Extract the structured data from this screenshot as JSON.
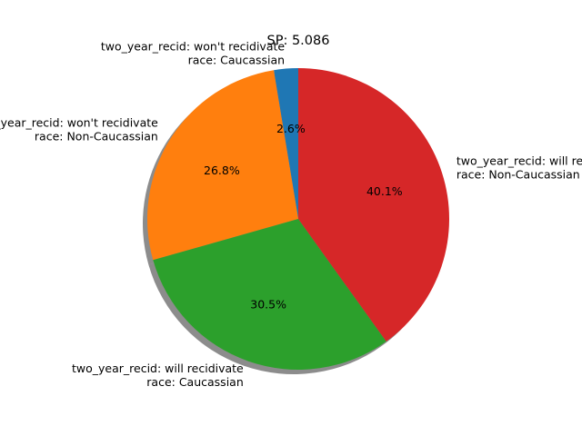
{
  "chart_data": {
    "type": "pie",
    "title": "SP: 5.086",
    "start_angle_deg": 90,
    "direction": "counterclockwise",
    "shadow": true,
    "slices": [
      {
        "label_lines": [
          "two_year_recid: won't recidivate",
          "race: Caucassian"
        ],
        "percent": 2.6,
        "pct_text": "2.6%",
        "color": "#1f77b4"
      },
      {
        "label_lines": [
          "two_year_recid: won't recidivate",
          "race: Non-Caucassian"
        ],
        "percent": 26.8,
        "pct_text": "26.8%",
        "color": "#ff7f0e"
      },
      {
        "label_lines": [
          "two_year_recid: will recidivate",
          "race: Caucassian"
        ],
        "percent": 30.5,
        "pct_text": "30.5%",
        "color": "#2ca02c"
      },
      {
        "label_lines": [
          "two_year_recid: will recidivate",
          "race: Non-Caucassian"
        ],
        "percent": 40.1,
        "pct_text": "40.1%",
        "color": "#d62728"
      }
    ]
  }
}
